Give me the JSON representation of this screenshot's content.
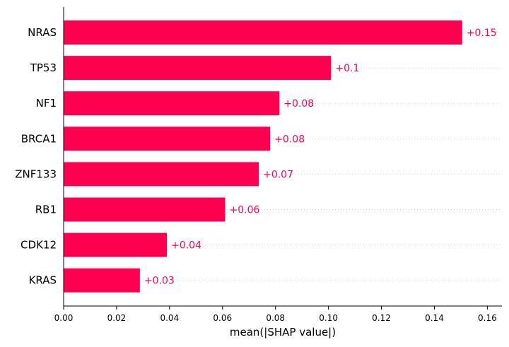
{
  "chart_data": {
    "type": "bar",
    "orientation": "horizontal",
    "title": "",
    "xlabel": "mean(|SHAP value|)",
    "ylabel": "",
    "categories": [
      "NRAS",
      "TP53",
      "NF1",
      "BRCA1",
      "ZNF133",
      "RB1",
      "CDK12",
      "KRAS"
    ],
    "values": [
      0.1505,
      0.101,
      0.0815,
      0.078,
      0.0737,
      0.061,
      0.039,
      0.0288
    ],
    "data_labels": [
      "+0.15",
      "+0.1",
      "+0.08",
      "+0.08",
      "+0.07",
      "+0.06",
      "+0.04",
      "+0.03"
    ],
    "xlim": [
      0,
      0.1655
    ],
    "xticks": [
      0.0,
      0.02,
      0.04,
      0.06,
      0.08,
      0.1,
      0.12,
      0.14,
      0.16
    ],
    "xtick_labels": [
      "0.00",
      "0.02",
      "0.04",
      "0.06",
      "0.08",
      "0.10",
      "0.12",
      "0.14",
      "0.16"
    ],
    "grid": "dotted row guides",
    "legend": "none",
    "colors": {
      "bar": "#ff0051",
      "label": "#ff0051",
      "axis": "#000000",
      "guide": "#cccccc"
    }
  }
}
